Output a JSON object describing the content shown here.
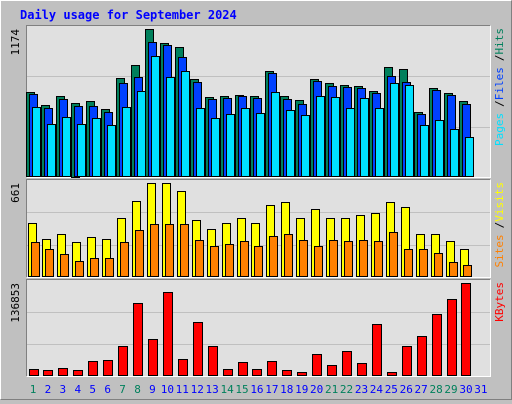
{
  "title": "Daily usage for September 2024",
  "categories": [
    "1",
    "2",
    "3",
    "4",
    "5",
    "6",
    "7",
    "8",
    "9",
    "10",
    "11",
    "12",
    "13",
    "14",
    "15",
    "16",
    "17",
    "18",
    "19",
    "20",
    "21",
    "22",
    "23",
    "24",
    "25",
    "26",
    "27",
    "28",
    "29",
    "30",
    "31"
  ],
  "label_colors": [
    "#00805c",
    "#0000ff",
    "#0000ff",
    "#0000ff",
    "#0000ff",
    "#0000ff",
    "#00805c",
    "#00805c",
    "#0000ff",
    "#0000ff",
    "#0000ff",
    "#0000ff",
    "#0000ff",
    "#00805c",
    "#00805c",
    "#0000ff",
    "#0000ff",
    "#0000ff",
    "#0000ff",
    "#0000ff",
    "#00805c",
    "#00805c",
    "#0000ff",
    "#0000ff",
    "#0000ff",
    "#0000ff",
    "#0000ff",
    "#00805c",
    "#00805c",
    "#0000ff",
    "#0000ff"
  ],
  "legend_separator": "/",
  "chart_data": [
    {
      "type": "bar",
      "ylim": [
        0,
        1174
      ],
      "yticks": [
        1174
      ],
      "series": [
        {
          "name": "Hits",
          "color": "#00805c",
          "values": [
            667,
            571,
            635,
            587,
            595,
            539,
            780,
            884,
            1174,
            1061,
            1029,
            772,
            627,
            635,
            643,
            635,
            836,
            635,
            603,
            772,
            740,
            724,
            716,
            675,
            868,
            852,
            515,
            700,
            659,
            595,
            null
          ]
        },
        {
          "name": "Files",
          "color": "#0040ff",
          "values": [
            651,
            547,
            611,
            563,
            563,
            515,
            740,
            788,
            1069,
            1045,
            949,
            748,
            611,
            619,
            635,
            619,
            820,
            611,
            579,
            756,
            716,
            708,
            700,
            659,
            796,
            748,
            498,
            683,
            643,
            579,
            null
          ]
        },
        {
          "name": "Pages",
          "color": "#00e0ff",
          "values": [
            555,
            418,
            474,
            418,
            466,
            410,
            555,
            675,
            957,
            788,
            836,
            547,
            466,
            498,
            547,
            507,
            667,
            531,
            490,
            635,
            627,
            547,
            619,
            547,
            740,
            724,
            410,
            450,
            378,
            314,
            null
          ]
        }
      ]
    },
    {
      "type": "bar",
      "ylim": [
        0,
        661
      ],
      "yticks": [
        661
      ],
      "series": [
        {
          "name": "Visits",
          "color": "#ffff00",
          "values": [
            380,
            266,
            302,
            244,
            280,
            266,
            409,
            531,
            661,
            661,
            603,
            395,
            337,
            380,
            409,
            380,
            503,
            524,
            409,
            474,
            409,
            409,
            431,
            445,
            524,
            488,
            302,
            302,
            251,
            194,
            null
          ]
        },
        {
          "name": "Sites",
          "color": "#ff8000",
          "values": [
            244,
            194,
            158,
            108,
            129,
            129,
            244,
            330,
            373,
            373,
            373,
            258,
            215,
            230,
            251,
            215,
            287,
            302,
            258,
            215,
            258,
            251,
            258,
            251,
            316,
            194,
            194,
            165,
            101,
            79,
            null
          ]
        }
      ]
    },
    {
      "type": "bar",
      "ylim": [
        0,
        136853
      ],
      "yticks": [
        136853
      ],
      "series": [
        {
          "name": "KBytes",
          "color": "#ff0000",
          "values": [
            9024,
            7520,
            10528,
            7520,
            21056,
            22560,
            43616,
            106784,
            54144,
            123328,
            24064,
            78208,
            43616,
            9024,
            19552,
            9024,
            21056,
            7520,
            4512,
            31584,
            15040,
            36096,
            18048,
            75200,
            4512,
            43616,
            58656,
            90240,
            112800,
            136853,
            null
          ]
        }
      ]
    }
  ]
}
